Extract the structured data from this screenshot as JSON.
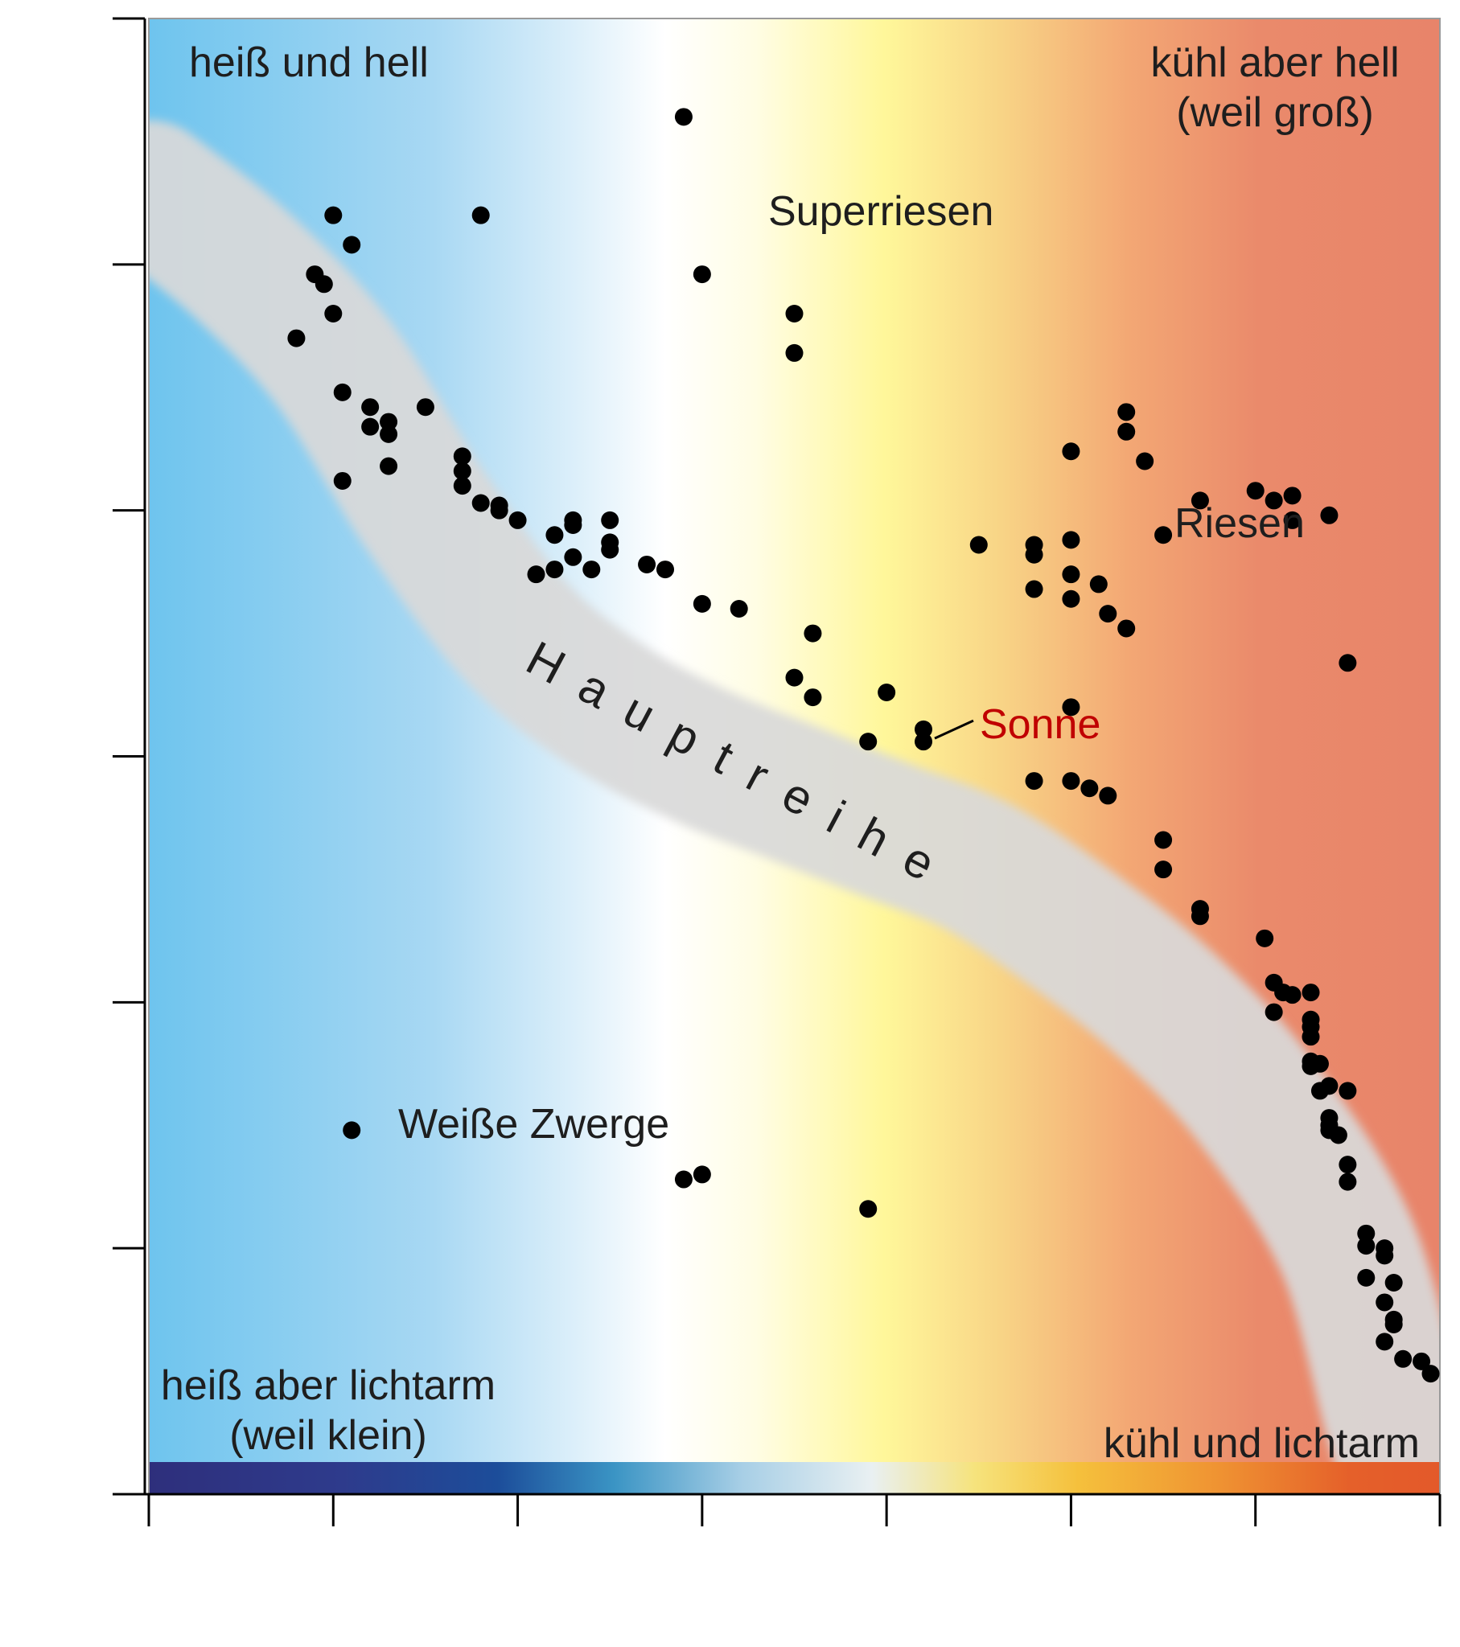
{
  "chart_data": {
    "type": "scatter",
    "title": "",
    "xlabel": "",
    "ylabel": "",
    "xlim": [
      0,
      7
    ],
    "ylim": [
      0,
      6
    ],
    "grid": false,
    "legend": "none",
    "x_tick_count": 8,
    "y_tick_count": 7,
    "annotations": {
      "hot_bright": "heiß und hell",
      "cool_bright_1": "kühl aber hell",
      "cool_bright_2": "(weil groß)",
      "hot_dim_1": "heiß aber lichtarm",
      "hot_dim_2": "(weil klein)",
      "cool_dim": "kühl und lichtarm",
      "supergiants": "Superriesen",
      "giants": "Riesen",
      "white_dwarfs": "Weiße Zwerge",
      "main_sequence": "Hauptreihe",
      "sun": "Sonne"
    },
    "colors": {
      "hot": "#6ec4ee",
      "neutral": "#ffffff",
      "mid": "#fff7a0",
      "warm": "#f4a36c",
      "cool": "#e8856a",
      "band": "#d9d9d9",
      "sun_label": "#c00000",
      "points": "#000000"
    },
    "main_sequence_band": [
      [
        0,
        5.3
      ],
      [
        0.5,
        5
      ],
      [
        1,
        4.6
      ],
      [
        1.5,
        4
      ],
      [
        2,
        3.5
      ],
      [
        2.5,
        3.2
      ],
      [
        3,
        3
      ],
      [
        3.5,
        2.85
      ],
      [
        4,
        2.7
      ],
      [
        4.5,
        2.55
      ],
      [
        5,
        2.3
      ],
      [
        5.5,
        2
      ],
      [
        6,
        1.6
      ],
      [
        6.5,
        1
      ],
      [
        6.8,
        0.2
      ],
      [
        7,
        0.05
      ]
    ],
    "sun_point": [
      4.2,
      3.06
    ],
    "points": [
      [
        2.9,
        5.6
      ],
      [
        1.0,
        5.2
      ],
      [
        1.1,
        5.08
      ],
      [
        1.8,
        5.2
      ],
      [
        0.9,
        4.96
      ],
      [
        0.95,
        4.92
      ],
      [
        1.0,
        4.8
      ],
      [
        0.8,
        4.7
      ],
      [
        3.0,
        4.96
      ],
      [
        3.5,
        4.8
      ],
      [
        3.5,
        4.64
      ],
      [
        1.05,
        4.48
      ],
      [
        1.2,
        4.42
      ],
      [
        1.2,
        4.34
      ],
      [
        1.3,
        4.36
      ],
      [
        1.3,
        4.31
      ],
      [
        1.5,
        4.42
      ],
      [
        1.3,
        4.18
      ],
      [
        1.05,
        4.12
      ],
      [
        1.7,
        4.22
      ],
      [
        1.7,
        4.16
      ],
      [
        1.7,
        4.1
      ],
      [
        1.8,
        4.03
      ],
      [
        1.9,
        4.02
      ],
      [
        1.9,
        4.0
      ],
      [
        2.0,
        3.96
      ],
      [
        2.2,
        3.9
      ],
      [
        2.3,
        3.96
      ],
      [
        2.3,
        3.94
      ],
      [
        2.5,
        3.96
      ],
      [
        2.1,
        3.74
      ],
      [
        2.2,
        3.76
      ],
      [
        2.3,
        3.81
      ],
      [
        2.4,
        3.76
      ],
      [
        2.5,
        3.84
      ],
      [
        2.5,
        3.87
      ],
      [
        2.7,
        3.78
      ],
      [
        2.8,
        3.76
      ],
      [
        3.0,
        3.62
      ],
      [
        3.2,
        3.6
      ],
      [
        3.6,
        3.5
      ],
      [
        3.5,
        3.32
      ],
      [
        3.6,
        3.24
      ],
      [
        4.0,
        3.26
      ],
      [
        3.9,
        3.06
      ],
      [
        4.2,
        3.11
      ],
      [
        4.2,
        3.06
      ],
      [
        4.8,
        2.9
      ],
      [
        5.0,
        2.9
      ],
      [
        5.1,
        2.87
      ],
      [
        5.2,
        2.84
      ],
      [
        5.5,
        2.66
      ],
      [
        5.5,
        2.54
      ],
      [
        5.7,
        2.38
      ],
      [
        5.7,
        2.35
      ],
      [
        6.05,
        2.26
      ],
      [
        6.1,
        2.08
      ],
      [
        6.15,
        2.04
      ],
      [
        6.1,
        1.96
      ],
      [
        6.2,
        2.03
      ],
      [
        6.3,
        2.04
      ],
      [
        6.3,
        1.93
      ],
      [
        6.3,
        1.9
      ],
      [
        6.3,
        1.86
      ],
      [
        6.3,
        1.76
      ],
      [
        6.35,
        1.75
      ],
      [
        6.3,
        1.74
      ],
      [
        6.4,
        1.66
      ],
      [
        6.35,
        1.64
      ],
      [
        6.5,
        1.64
      ],
      [
        6.4,
        1.53
      ],
      [
        6.4,
        1.5
      ],
      [
        6.45,
        1.46
      ],
      [
        6.4,
        1.48
      ],
      [
        6.5,
        1.34
      ],
      [
        6.5,
        1.27
      ],
      [
        6.6,
        1.06
      ],
      [
        6.6,
        1.01
      ],
      [
        6.7,
        1.0
      ],
      [
        6.7,
        0.97
      ],
      [
        6.6,
        0.88
      ],
      [
        6.75,
        0.86
      ],
      [
        6.7,
        0.78
      ],
      [
        6.75,
        0.71
      ],
      [
        6.75,
        0.69
      ],
      [
        6.7,
        0.62
      ],
      [
        6.8,
        0.55
      ],
      [
        6.9,
        0.54
      ],
      [
        6.95,
        0.49
      ],
      [
        5.0,
        3.2
      ],
      [
        6.5,
        3.38
      ],
      [
        4.5,
        3.86
      ],
      [
        4.8,
        3.86
      ],
      [
        4.8,
        3.82
      ],
      [
        4.8,
        3.68
      ],
      [
        5.0,
        3.88
      ],
      [
        5.0,
        3.74
      ],
      [
        5.0,
        3.64
      ],
      [
        5.15,
        3.7
      ],
      [
        5.2,
        3.58
      ],
      [
        5.3,
        3.52
      ],
      [
        5.0,
        4.24
      ],
      [
        5.3,
        4.4
      ],
      [
        5.3,
        4.32
      ],
      [
        5.4,
        4.2
      ],
      [
        5.5,
        3.9
      ],
      [
        5.7,
        4.04
      ],
      [
        6.0,
        4.08
      ],
      [
        6.1,
        4.04
      ],
      [
        6.2,
        4.06
      ],
      [
        6.2,
        3.96
      ],
      [
        6.4,
        3.98
      ],
      [
        1.1,
        1.48
      ],
      [
        2.9,
        1.28
      ],
      [
        3.0,
        1.3
      ],
      [
        3.9,
        1.16
      ]
    ]
  }
}
